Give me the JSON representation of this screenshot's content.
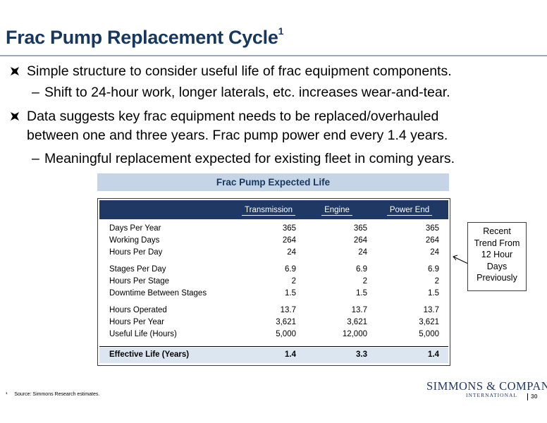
{
  "slide": {
    "title": "Frac Pump Replacement Cycle",
    "title_sup": "1"
  },
  "bullets": [
    {
      "level": 1,
      "text": "Simple structure to consider useful life of frac equipment components."
    },
    {
      "level": 2,
      "text": "Shift to 24-hour work, longer laterals, etc. increases wear-and-tear."
    },
    {
      "level": 1,
      "text": "Data suggests key frac equipment needs to be replaced/overhauled",
      "text_cont": "between one and three years.  Frac pump power end every 1.4 years."
    },
    {
      "level": 2,
      "text": "Meaningful replacement expected for existing fleet in coming years."
    }
  ],
  "table": {
    "title": "Frac Pump Expected Life",
    "columns": [
      "Transmission",
      "Engine",
      "Power End"
    ],
    "rows": [
      {
        "label": "Days Per Year",
        "values": [
          "365",
          "365",
          "365"
        ]
      },
      {
        "label": "Working Days",
        "values": [
          "264",
          "264",
          "264"
        ]
      },
      {
        "label": "Hours Per Day",
        "values": [
          "24",
          "24",
          "24"
        ]
      },
      {
        "label": "Stages Per Day",
        "values": [
          "6.9",
          "6.9",
          "6.9"
        ]
      },
      {
        "label": "Hours Per Stage",
        "values": [
          "2",
          "2",
          "2"
        ]
      },
      {
        "label": "Downtime Between Stages",
        "values": [
          "1.5",
          "1.5",
          "1.5"
        ]
      },
      {
        "label": "Hours Operated",
        "values": [
          "13.7",
          "13.7",
          "13.7"
        ]
      },
      {
        "label": "Hours Per Year",
        "values": [
          "3,621",
          "3,621",
          "3,621"
        ]
      },
      {
        "label": "Useful Life (Hours)",
        "values": [
          "5,000",
          "12,000",
          "5,000"
        ]
      }
    ],
    "summary": {
      "label": "Effective Life (Years)",
      "values": [
        "1.4",
        "3.3",
        "1.4"
      ]
    }
  },
  "callout": {
    "lines": [
      "Recent",
      "Trend From",
      "12 Hour",
      "Days",
      "Previously"
    ]
  },
  "footer": {
    "footnote_mark": "¹",
    "footnote": "Source:  Simmons Research estimates.",
    "logo_main": "SIMMONS & COMPANY",
    "logo_sub": "INTERNATIONAL",
    "page_number": "30"
  },
  "colors": {
    "title": "#17375e",
    "table_header": "#1f3864",
    "table_title_bg": "#c5d5e6",
    "summary_bg": "#dce6f1"
  }
}
